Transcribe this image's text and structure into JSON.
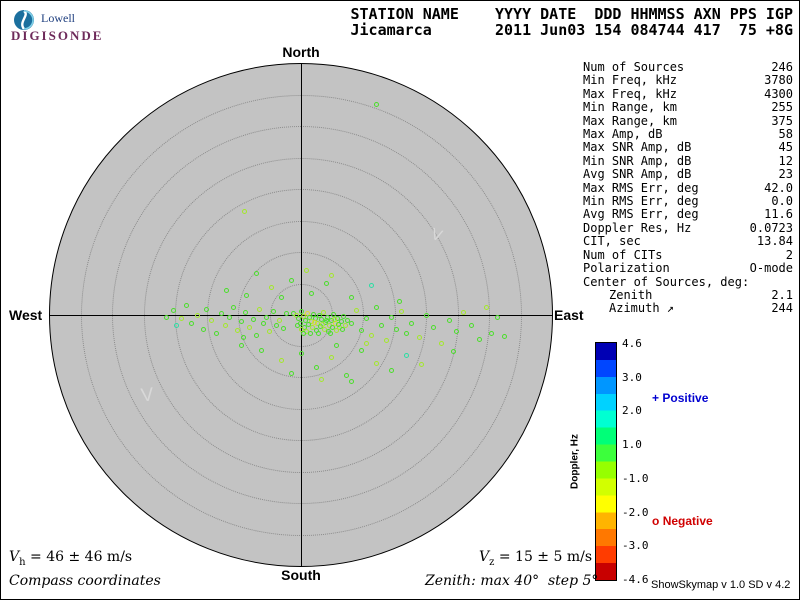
{
  "logo": {
    "top": "Lowell",
    "bottom": "DIGISONDE"
  },
  "header": {
    "line1": "STATION NAME    YYYY DATE  DDD HHMMSS AXN PPS IGP",
    "line2": "Jicamarca       2011 Jun03 154 084744 417  75 +8G"
  },
  "compass": {
    "north": "North",
    "south": "South",
    "east": "East",
    "west": "West"
  },
  "stats": {
    "rows": [
      {
        "label": "Num of Sources",
        "value": "246",
        "indent": false
      },
      {
        "label": "Min Freq, kHz",
        "value": "3780",
        "indent": false
      },
      {
        "label": "Max Freq, kHz",
        "value": "4300",
        "indent": false
      },
      {
        "label": "Min Range, km",
        "value": "255",
        "indent": false
      },
      {
        "label": "Max Range, km",
        "value": "375",
        "indent": false
      },
      {
        "label": "Max Amp, dB",
        "value": "58",
        "indent": false
      },
      {
        "label": "Max SNR Amp, dB",
        "value": "45",
        "indent": false
      },
      {
        "label": "Min SNR Amp, dB",
        "value": "12",
        "indent": false
      },
      {
        "label": "Avg SNR Amp, dB",
        "value": "23",
        "indent": false
      },
      {
        "label": "Max RMS Err, deg",
        "value": "42.0",
        "indent": false
      },
      {
        "label": "Min RMS Err, deg",
        "value": "0.0",
        "indent": false
      },
      {
        "label": "Avg RMS Err, deg",
        "value": "11.6",
        "indent": false
      },
      {
        "label": "Doppler Res, Hz",
        "value": "0.0723",
        "indent": false
      },
      {
        "label": "CIT, sec",
        "value": "13.84",
        "indent": false
      },
      {
        "label": "Num of CITs",
        "value": "2",
        "indent": false
      },
      {
        "label": "Polarization",
        "value": "O-mode",
        "indent": false
      },
      {
        "label": "Center of Sources, deg:",
        "value": "",
        "indent": false
      },
      {
        "label": "Zenith",
        "value": "2.1",
        "indent": true
      },
      {
        "label": "Azimuth ↗",
        "value": "244",
        "indent": true
      }
    ]
  },
  "colorbar": {
    "title": "Doppler, Hz",
    "ticks": [
      "4.6",
      "3.0",
      "2.0",
      "1.0",
      "-1.0",
      "-2.0",
      "-3.0",
      "-4.6"
    ],
    "colors": [
      "#0000b4",
      "#0046ff",
      "#0096ff",
      "#00d2ff",
      "#00ffd2",
      "#00ff78",
      "#3cff3c",
      "#96ff00",
      "#d2ff00",
      "#ffff00",
      "#ffb400",
      "#ff7800",
      "#ff3c00",
      "#c80000"
    ]
  },
  "legend": {
    "positive_symbol": "+",
    "positive_label": "Positive",
    "positive_color": "#0000d0",
    "negative_symbol": "o",
    "negative_label": "Negative",
    "negative_color": "#d00000"
  },
  "velocity": {
    "vh_symbol": "V",
    "vh_sub": "h",
    "vh_value": "= 46 ± 46 m/s",
    "vz_symbol": "V",
    "vz_sub": "z",
    "vz_value": "= 15 ± 5 m/s"
  },
  "footer": {
    "coordinates_note": "Compass coordinates",
    "zenith_note": "Zenith: max 40°  step 5°",
    "version": "ShowSkymap v 1.0  SD v 4.2"
  },
  "chart_data": {
    "type": "scatter",
    "projection": "polar skymap, North up, East right",
    "zenith_max_deg": 40,
    "zenith_step_deg": 5,
    "doppler_label": "Doppler, Hz",
    "doppler_range": [
      -4.6,
      4.6
    ],
    "num_sources": 246,
    "center_of_sources": {
      "zenith_deg": 2.1,
      "azimuth_deg": 244
    },
    "point_colors": [
      "#4ade2a",
      "#a3e82a",
      "#2adea3",
      "#dede2a"
    ],
    "points_units": "[dx_px, dy_px, color_index] offset from plot center; 252 px = 40 deg zenith",
    "points": [
      [
        -8,
        -2,
        0
      ],
      [
        -5,
        0,
        1
      ],
      [
        -3,
        3,
        0
      ],
      [
        0,
        -4,
        0
      ],
      [
        2,
        1,
        1
      ],
      [
        4,
        5,
        0
      ],
      [
        6,
        -2,
        3
      ],
      [
        8,
        2,
        0
      ],
      [
        10,
        6,
        1
      ],
      [
        12,
        -1,
        0
      ],
      [
        14,
        3,
        0
      ],
      [
        16,
        8,
        1
      ],
      [
        18,
        0,
        0
      ],
      [
        20,
        4,
        0
      ],
      [
        22,
        -3,
        1
      ],
      [
        24,
        7,
        0
      ],
      [
        26,
        2,
        0
      ],
      [
        28,
        10,
        1
      ],
      [
        30,
        5,
        0
      ],
      [
        32,
        -1,
        0
      ],
      [
        34,
        8,
        3
      ],
      [
        36,
        3,
        0
      ],
      [
        38,
        12,
        1
      ],
      [
        40,
        6,
        0
      ],
      [
        42,
        1,
        0
      ],
      [
        7,
        9,
        0
      ],
      [
        11,
        12,
        1
      ],
      [
        15,
        15,
        0
      ],
      [
        19,
        11,
        0
      ],
      [
        23,
        14,
        1
      ],
      [
        27,
        16,
        0
      ],
      [
        31,
        12,
        0
      ],
      [
        35,
        15,
        1
      ],
      [
        3,
        12,
        0
      ],
      [
        -1,
        8,
        0
      ],
      [
        5,
        16,
        1
      ],
      [
        9,
        18,
        0
      ],
      [
        13,
        7,
        3
      ],
      [
        17,
        18,
        0
      ],
      [
        21,
        9,
        1
      ],
      [
        25,
        5,
        0
      ],
      [
        29,
        18,
        0
      ],
      [
        33,
        4,
        1
      ],
      [
        37,
        9,
        0
      ],
      [
        41,
        14,
        0
      ],
      [
        0,
        14,
        1
      ],
      [
        -4,
        10,
        0
      ],
      [
        2,
        18,
        0
      ],
      [
        44,
        10,
        1
      ],
      [
        46,
        5,
        0
      ],
      [
        -128,
        -5,
        0
      ],
      [
        -120,
        3,
        1
      ],
      [
        -115,
        -10,
        0
      ],
      [
        -110,
        8,
        0
      ],
      [
        -104,
        0,
        1
      ],
      [
        -98,
        14,
        0
      ],
      [
        -95,
        -6,
        0
      ],
      [
        -90,
        5,
        1
      ],
      [
        -85,
        18,
        0
      ],
      [
        -80,
        -2,
        0
      ],
      [
        -76,
        10,
        1
      ],
      [
        -72,
        2,
        0
      ],
      [
        -68,
        -8,
        0
      ],
      [
        -64,
        15,
        1
      ],
      [
        -60,
        6,
        0
      ],
      [
        -56,
        -3,
        0
      ],
      [
        -52,
        12,
        1
      ],
      [
        -48,
        4,
        0
      ],
      [
        -45,
        20,
        0
      ],
      [
        -42,
        -6,
        1
      ],
      [
        -38,
        8,
        0
      ],
      [
        -35,
        2,
        0
      ],
      [
        -32,
        16,
        1
      ],
      [
        -28,
        -4,
        0
      ],
      [
        -25,
        10,
        0
      ],
      [
        -22,
        5,
        1
      ],
      [
        -18,
        13,
        0
      ],
      [
        -15,
        -2,
        0
      ],
      [
        -125,
        10,
        2
      ],
      [
        -58,
        22,
        0
      ],
      [
        50,
        8,
        0
      ],
      [
        55,
        -5,
        1
      ],
      [
        60,
        15,
        0
      ],
      [
        65,
        3,
        0
      ],
      [
        70,
        20,
        1
      ],
      [
        75,
        -8,
        0
      ],
      [
        80,
        10,
        0
      ],
      [
        85,
        25,
        1
      ],
      [
        90,
        2,
        0
      ],
      [
        95,
        14,
        0
      ],
      [
        100,
        -4,
        1
      ],
      [
        105,
        18,
        0
      ],
      [
        110,
        8,
        0
      ],
      [
        118,
        22,
        1
      ],
      [
        125,
        0,
        0
      ],
      [
        132,
        12,
        0
      ],
      [
        140,
        28,
        1
      ],
      [
        148,
        5,
        0
      ],
      [
        155,
        16,
        0
      ],
      [
        162,
        -3,
        1
      ],
      [
        170,
        10,
        0
      ],
      [
        178,
        24,
        0
      ],
      [
        185,
        -8,
        1
      ],
      [
        190,
        18,
        0
      ],
      [
        196,
        2,
        0
      ],
      [
        203,
        21,
        0
      ],
      [
        -40,
        35,
        0
      ],
      [
        -20,
        45,
        1
      ],
      [
        0,
        38,
        0
      ],
      [
        15,
        52,
        0
      ],
      [
        30,
        42,
        1
      ],
      [
        45,
        60,
        0
      ],
      [
        60,
        35,
        0
      ],
      [
        75,
        48,
        1
      ],
      [
        90,
        55,
        0
      ],
      [
        -60,
        30,
        0
      ],
      [
        105,
        40,
        2
      ],
      [
        50,
        66,
        0
      ],
      [
        20,
        64,
        1
      ],
      [
        -10,
        58,
        0
      ],
      [
        35,
        30,
        0
      ],
      [
        65,
        28,
        1
      ],
      [
        -55,
        -20,
        0
      ],
      [
        -30,
        -28,
        1
      ],
      [
        -10,
        -35,
        0
      ],
      [
        10,
        -22,
        0
      ],
      [
        30,
        -40,
        1
      ],
      [
        50,
        -18,
        0
      ],
      [
        -75,
        -25,
        0
      ],
      [
        70,
        -30,
        2
      ],
      [
        -45,
        -42,
        0
      ],
      [
        5,
        -45,
        1
      ],
      [
        -20,
        -18,
        0
      ],
      [
        25,
        -32,
        0
      ],
      [
        75,
        -211,
        0
      ],
      [
        -57,
        -104,
        1
      ],
      [
        -135,
        2,
        0
      ],
      [
        152,
        36,
        0
      ],
      [
        120,
        49,
        1
      ],
      [
        98,
        -14,
        0
      ]
    ]
  }
}
